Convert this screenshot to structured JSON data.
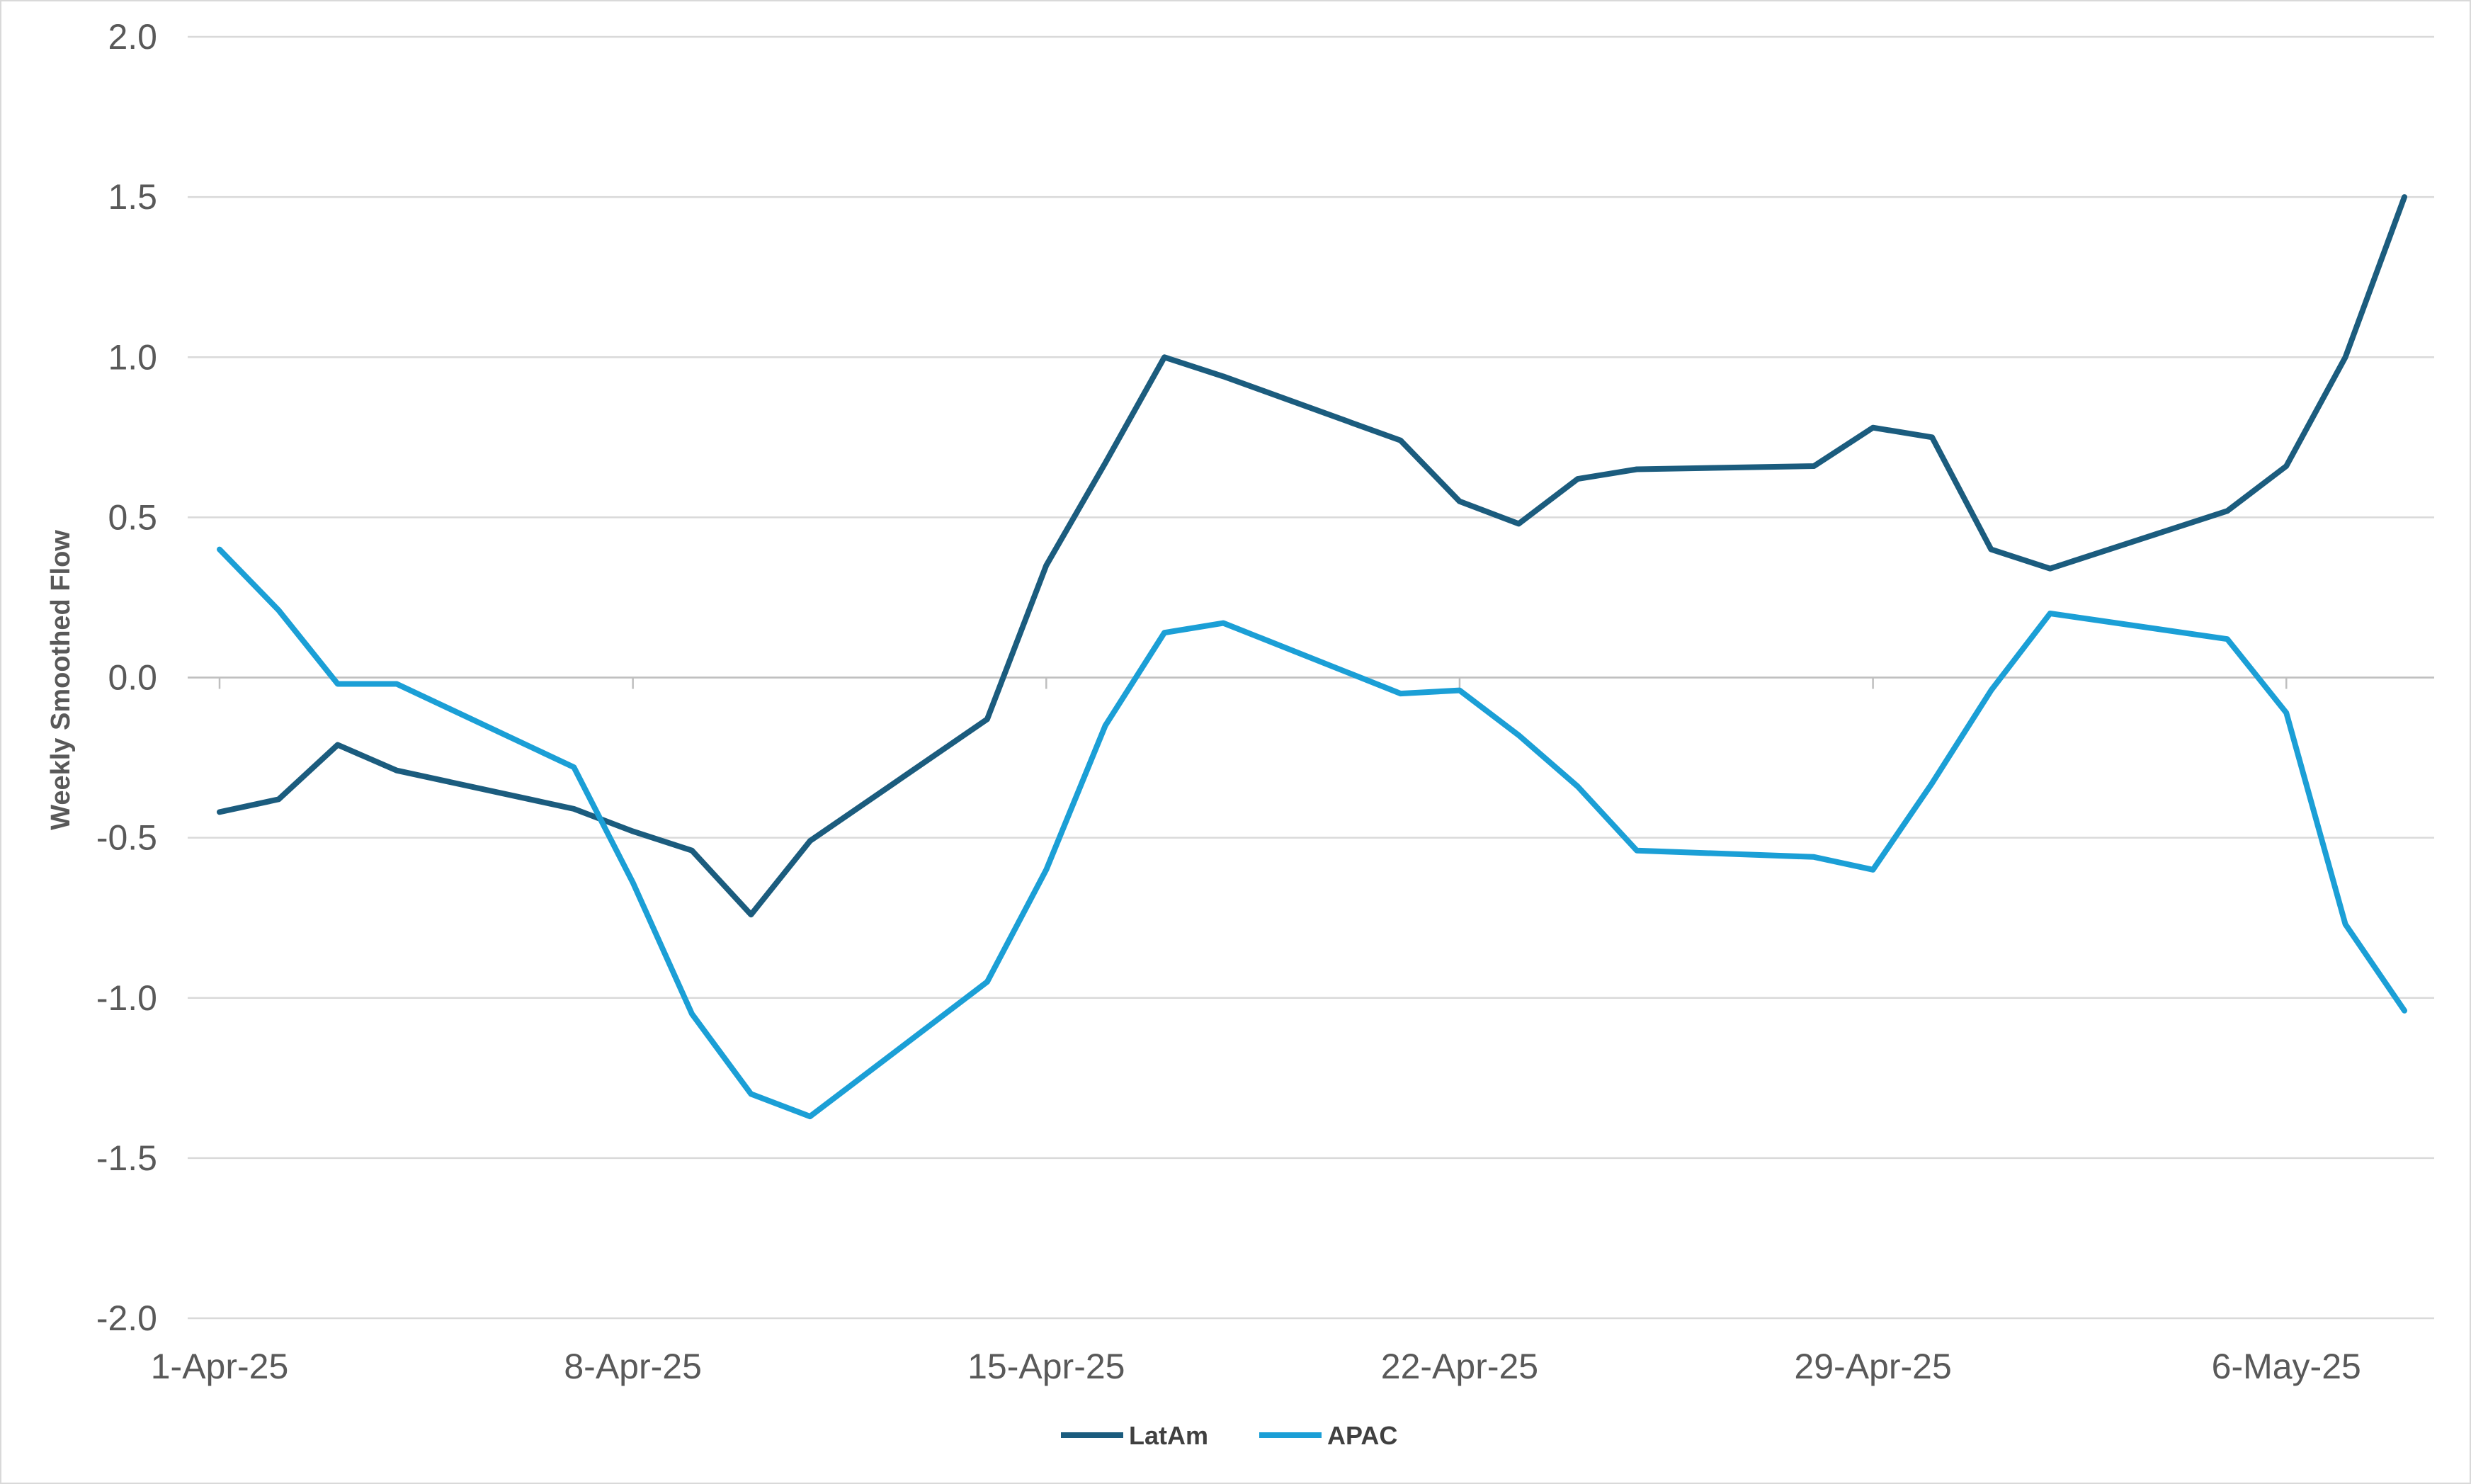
{
  "chart_data": {
    "type": "line",
    "title": "",
    "xlabel": "",
    "ylabel": "Weekly Smoothed Flow",
    "ylim": [
      -2.0,
      2.0
    ],
    "y_ticks": [
      "2.0",
      "1.5",
      "1.0",
      "0.5",
      "0.0",
      "-0.5",
      "-1.0",
      "-1.5",
      "-2.0"
    ],
    "x_ticks": [
      "1-Apr-25",
      "8-Apr-25",
      "15-Apr-25",
      "22-Apr-25",
      "29-Apr-25",
      "6-May-25"
    ],
    "x_start": "2025-04-01",
    "x_end": "2025-05-08",
    "grid": "horizontal",
    "legend_position": "bottom",
    "series": [
      {
        "name": "LatAm",
        "color": "#1B5C7E",
        "points": [
          [
            "2025-04-01",
            -0.42
          ],
          [
            "2025-04-02",
            -0.38
          ],
          [
            "2025-04-03",
            -0.21
          ],
          [
            "2025-04-04",
            -0.29
          ],
          [
            "2025-04-07",
            -0.41
          ],
          [
            "2025-04-08",
            -0.48
          ],
          [
            "2025-04-09",
            -0.54
          ],
          [
            "2025-04-10",
            -0.74
          ],
          [
            "2025-04-11",
            -0.51
          ],
          [
            "2025-04-14",
            -0.13
          ],
          [
            "2025-04-15",
            0.35
          ],
          [
            "2025-04-16",
            0.67
          ],
          [
            "2025-04-17",
            1.0
          ],
          [
            "2025-04-18",
            0.94
          ],
          [
            "2025-04-21",
            0.74
          ],
          [
            "2025-04-22",
            0.55
          ],
          [
            "2025-04-23",
            0.48
          ],
          [
            "2025-04-24",
            0.62
          ],
          [
            "2025-04-25",
            0.65
          ],
          [
            "2025-04-28",
            0.66
          ],
          [
            "2025-04-29",
            0.78
          ],
          [
            "2025-04-30",
            0.75
          ],
          [
            "2025-05-01",
            0.4
          ],
          [
            "2025-05-02",
            0.34
          ],
          [
            "2025-05-05",
            0.52
          ],
          [
            "2025-05-06",
            0.66
          ],
          [
            "2025-05-07",
            1.0
          ],
          [
            "2025-05-08",
            1.5
          ]
        ]
      },
      {
        "name": "APAC",
        "color": "#1B9FD6",
        "points": [
          [
            "2025-04-01",
            0.4
          ],
          [
            "2025-04-02",
            0.21
          ],
          [
            "2025-04-03",
            -0.02
          ],
          [
            "2025-04-04",
            -0.02
          ],
          [
            "2025-04-07",
            -0.28
          ],
          [
            "2025-04-08",
            -0.64
          ],
          [
            "2025-04-09",
            -1.05
          ],
          [
            "2025-04-10",
            -1.3
          ],
          [
            "2025-04-11",
            -1.37
          ],
          [
            "2025-04-14",
            -0.95
          ],
          [
            "2025-04-15",
            -0.6
          ],
          [
            "2025-04-16",
            -0.15
          ],
          [
            "2025-04-17",
            0.14
          ],
          [
            "2025-04-18",
            0.17
          ],
          [
            "2025-04-21",
            -0.05
          ],
          [
            "2025-04-22",
            -0.04
          ],
          [
            "2025-04-23",
            -0.18
          ],
          [
            "2025-04-24",
            -0.34
          ],
          [
            "2025-04-25",
            -0.54
          ],
          [
            "2025-04-28",
            -0.56
          ],
          [
            "2025-04-29",
            -0.6
          ],
          [
            "2025-04-30",
            -0.33
          ],
          [
            "2025-05-01",
            -0.04
          ],
          [
            "2025-05-02",
            0.2
          ],
          [
            "2025-05-05",
            0.12
          ],
          [
            "2025-05-06",
            -0.11
          ],
          [
            "2025-05-07",
            -0.77
          ],
          [
            "2025-05-08",
            -1.04
          ]
        ]
      }
    ]
  }
}
